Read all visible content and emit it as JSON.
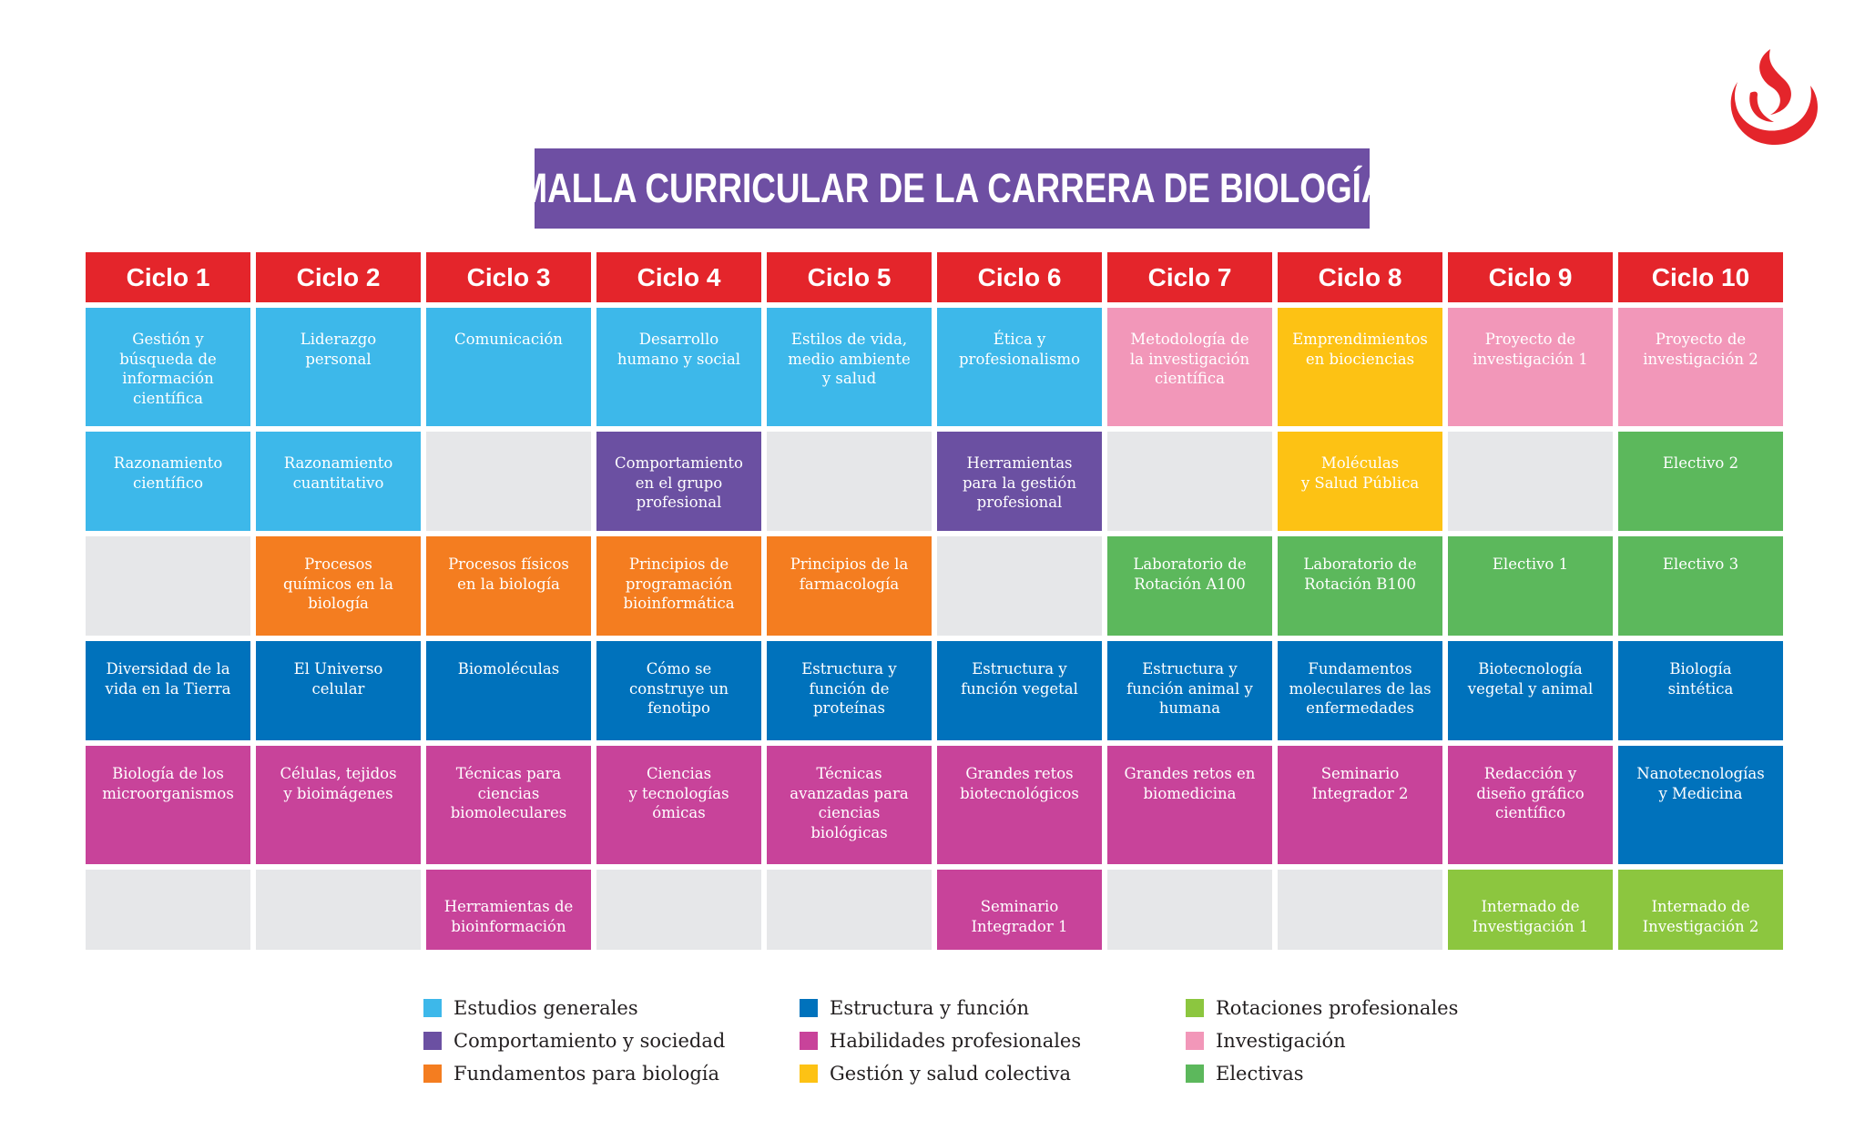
{
  "title": "MALLA CURRICULAR DE LA CARRERA DE BIOLOGÍA",
  "logo_icon": "upc-flame-logo-icon",
  "colors": {
    "header": "#e4252b",
    "title_banner": "#6e4fa3",
    "generales": "#3db8ea",
    "comport": "#6b50a2",
    "fund": "#f47d20",
    "estructura": "#0072bc",
    "habil": "#c8439a",
    "gestion": "#fdc214",
    "rotaciones": "#8cc63f",
    "invest": "#f297b9",
    "electivas": "#5cb85c",
    "empty": "#e6e7e9"
  },
  "cycles": [
    {
      "name": "Ciclo 1",
      "courses": [
        {
          "text": "Gestión y\nbúsqueda de\ninformación\ncientífica",
          "category": "generales"
        },
        {
          "text": "Razonamiento\ncientífico",
          "category": "generales"
        },
        {
          "text": "",
          "category": "empty"
        },
        {
          "text": "Diversidad de la\nvida en la Tierra",
          "category": "estructura"
        },
        {
          "text": "Biología de los\nmicroorganismos",
          "category": "habil"
        },
        {
          "text": "",
          "category": "empty"
        }
      ]
    },
    {
      "name": "Ciclo 2",
      "courses": [
        {
          "text": "Liderazgo\npersonal",
          "category": "generales"
        },
        {
          "text": "Razonamiento\ncuantitativo",
          "category": "generales"
        },
        {
          "text": "Procesos\nquímicos en la\nbiología",
          "category": "fund"
        },
        {
          "text": "El Universo\ncelular",
          "category": "estructura"
        },
        {
          "text": "Células, tejidos\ny bioimágenes",
          "category": "habil"
        },
        {
          "text": "",
          "category": "empty"
        }
      ]
    },
    {
      "name": "Ciclo 3",
      "courses": [
        {
          "text": "Comunicación",
          "category": "generales"
        },
        {
          "text": "",
          "category": "empty"
        },
        {
          "text": "Procesos físicos\nen la biología",
          "category": "fund"
        },
        {
          "text": "Biomoléculas",
          "category": "estructura"
        },
        {
          "text": "Técnicas para\nciencias\nbiomoleculares",
          "category": "habil"
        },
        {
          "text": "Herramientas de\nbioinformación",
          "category": "habil"
        }
      ]
    },
    {
      "name": "Ciclo 4",
      "courses": [
        {
          "text": "Desarrollo\nhumano y social",
          "category": "generales"
        },
        {
          "text": "Comportamiento\nen el grupo\nprofesional",
          "category": "comport"
        },
        {
          "text": "Principios de\nprogramación\nbioinformática",
          "category": "fund"
        },
        {
          "text": "Cómo se\nconstruye un\nfenotipo",
          "category": "estructura"
        },
        {
          "text": "Ciencias\ny tecnologías\nómicas",
          "category": "habil"
        },
        {
          "text": "",
          "category": "empty"
        }
      ]
    },
    {
      "name": "Ciclo 5",
      "courses": [
        {
          "text": "Estilos de vida,\nmedio ambiente\ny salud",
          "category": "generales"
        },
        {
          "text": "",
          "category": "empty"
        },
        {
          "text": "Principios de la\nfarmacología",
          "category": "fund"
        },
        {
          "text": "Estructura y\nfunción de\nproteínas",
          "category": "estructura"
        },
        {
          "text": "Técnicas\navanzadas para\nciencias\nbiológicas",
          "category": "habil"
        },
        {
          "text": "",
          "category": "empty"
        }
      ]
    },
    {
      "name": "Ciclo 6",
      "courses": [
        {
          "text": "Ética y\nprofesionalismo",
          "category": "generales"
        },
        {
          "text": "Herramientas\npara la gestión\nprofesional",
          "category": "comport"
        },
        {
          "text": "",
          "category": "empty"
        },
        {
          "text": "Estructura y\nfunción vegetal",
          "category": "estructura"
        },
        {
          "text": "Grandes retos\nbiotecnológicos",
          "category": "habil"
        },
        {
          "text": "Seminario\nIntegrador 1",
          "category": "habil"
        }
      ]
    },
    {
      "name": "Ciclo 7",
      "courses": [
        {
          "text": "Metodología de\nla investigación\ncientífica",
          "category": "invest"
        },
        {
          "text": "",
          "category": "empty"
        },
        {
          "text": "Laboratorio de\nRotación A100",
          "category": "electivas"
        },
        {
          "text": "Estructura y\nfunción animal y\nhumana",
          "category": "estructura"
        },
        {
          "text": "Grandes retos en\nbiomedicina",
          "category": "habil"
        },
        {
          "text": "",
          "category": "empty"
        }
      ]
    },
    {
      "name": "Ciclo 8",
      "courses": [
        {
          "text": "Emprendimientos\nen biociencias",
          "category": "gestion"
        },
        {
          "text": "Moléculas\ny Salud Pública",
          "category": "gestion"
        },
        {
          "text": "Laboratorio de\nRotación B100",
          "category": "electivas"
        },
        {
          "text": "Fundamentos\nmoleculares de las\nenfermedades",
          "category": "estructura"
        },
        {
          "text": "Seminario\nIntegrador 2",
          "category": "habil"
        },
        {
          "text": "",
          "category": "empty"
        }
      ]
    },
    {
      "name": "Ciclo 9",
      "courses": [
        {
          "text": "Proyecto de\ninvestigación 1",
          "category": "invest"
        },
        {
          "text": "",
          "category": "empty"
        },
        {
          "text": "Electivo 1",
          "category": "electivas"
        },
        {
          "text": "Biotecnología\nvegetal y animal",
          "category": "estructura"
        },
        {
          "text": "Redacción y\ndiseño gráfico\ncientífico",
          "category": "habil"
        },
        {
          "text": "Internado de\nInvestigación 1",
          "category": "rotaciones"
        }
      ]
    },
    {
      "name": "Ciclo 10",
      "courses": [
        {
          "text": "Proyecto de\ninvestigación 2",
          "category": "invest"
        },
        {
          "text": "Electivo 2",
          "category": "electivas"
        },
        {
          "text": "Electivo 3",
          "category": "electivas"
        },
        {
          "text": "Biología\nsintética",
          "category": "estructura"
        },
        {
          "text": "Nanotecnologías\ny Medicina",
          "category": "estructura"
        },
        {
          "text": "Internado de\nInvestigación 2",
          "category": "rotaciones"
        }
      ]
    }
  ],
  "legend": [
    {
      "label": "Estudios generales",
      "category": "generales"
    },
    {
      "label": "Estructura y función",
      "category": "estructura"
    },
    {
      "label": "Rotaciones profesionales",
      "category": "rotaciones"
    },
    {
      "label": "Comportamiento y sociedad",
      "category": "comport"
    },
    {
      "label": "Habilidades profesionales",
      "category": "habil"
    },
    {
      "label": "Investigación",
      "category": "invest"
    },
    {
      "label": "Fundamentos para biología",
      "category": "fund"
    },
    {
      "label": "Gestión y salud colectiva",
      "category": "gestion"
    },
    {
      "label": "Electivas",
      "category": "electivas"
    }
  ]
}
